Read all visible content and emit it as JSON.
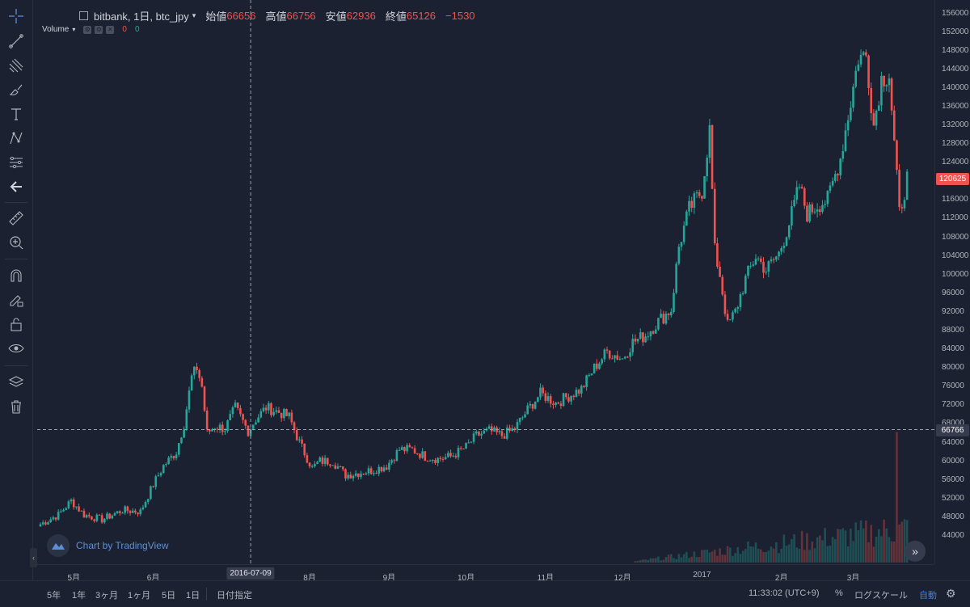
{
  "legend": {
    "symbol": "bitbank, 1日, btc_jpy",
    "open_label": "始値",
    "open_value": "66656",
    "high_label": "高値",
    "high_value": "66756",
    "low_label": "安値",
    "low_value": "62936",
    "close_label": "終値",
    "close_value": "65126",
    "change": "−1530"
  },
  "volume_indicator": {
    "label": "Volume",
    "value_a": "0",
    "value_b": "0"
  },
  "price_axis": {
    "ticks": [
      "156000",
      "152000",
      "148000",
      "144000",
      "140000",
      "136000",
      "132000",
      "128000",
      "124000",
      "120000",
      "116000",
      "112000",
      "108000",
      "104000",
      "100000",
      "96000",
      "92000",
      "88000",
      "84000",
      "80000",
      "76000",
      "72000",
      "68000",
      "64000",
      "60000",
      "56000",
      "52000",
      "48000",
      "44000"
    ],
    "current_price": "120625",
    "crosshair_price": "66766"
  },
  "time_axis": {
    "labels": [
      "5月",
      "6月",
      "7",
      "8月",
      "9月",
      "10月",
      "11月",
      "12月",
      "2017",
      "2月",
      "3月"
    ],
    "crosshair_date": "2016-07-09"
  },
  "watermark": {
    "text": "Chart by TradingView"
  },
  "bottom_bar": {
    "ranges": [
      "5年",
      "1年",
      "3ヶ月",
      "1ヶ月",
      "5日",
      "1日"
    ],
    "goto_date": "日付指定",
    "clock": "11:33:02 (UTC+9)",
    "percent": "%",
    "log_scale": "ログスケール",
    "auto": "自動"
  },
  "toolbar": {
    "tools": [
      "crosshair-icon",
      "trend-line-icon",
      "pitchfork-icon",
      "brush-icon",
      "text-icon",
      "pattern-icon",
      "prediction-icon",
      "back-arrow-icon",
      "ruler-icon",
      "zoom-in-icon",
      "magnet-icon",
      "lock-drawing-icon",
      "unlock-icon",
      "eye-icon",
      "layers-icon",
      "trash-icon"
    ]
  },
  "colors": {
    "up": "#26a69a",
    "down": "#ef5350",
    "background": "#1b2130",
    "accent": "#3d82e6"
  },
  "chart_data": {
    "type": "candlestick",
    "symbol": "btc_jpy",
    "interval": "1日",
    "y_range": [
      42000,
      156000
    ],
    "x_range": [
      "2016-04-18",
      "2017-03-27"
    ],
    "anchors": [
      [
        "2016-04-18",
        46500
      ],
      [
        "2016-04-25",
        48500
      ],
      [
        "2016-04-30",
        51500
      ],
      [
        "2016-05-05",
        48500
      ],
      [
        "2016-05-12",
        47500
      ],
      [
        "2016-05-20",
        49500
      ],
      [
        "2016-05-27",
        49200
      ],
      [
        "2016-06-01",
        55000
      ],
      [
        "2016-06-05",
        59000
      ],
      [
        "2016-06-10",
        62000
      ],
      [
        "2016-06-13",
        68000
      ],
      [
        "2016-06-16",
        78000
      ],
      [
        "2016-06-18",
        80000
      ],
      [
        "2016-06-20",
        76000
      ],
      [
        "2016-06-22",
        66000
      ],
      [
        "2016-06-25",
        67500
      ],
      [
        "2016-06-29",
        67000
      ],
      [
        "2016-07-03",
        71500
      ],
      [
        "2016-07-08",
        66500
      ],
      [
        "2016-07-11",
        69000
      ],
      [
        "2016-07-15",
        71500
      ],
      [
        "2016-07-20",
        70500
      ],
      [
        "2016-07-24",
        69500
      ],
      [
        "2016-07-28",
        64000
      ],
      [
        "2016-08-02",
        58500
      ],
      [
        "2016-08-05",
        60000
      ],
      [
        "2016-08-10",
        60000
      ],
      [
        "2016-08-15",
        57000
      ],
      [
        "2016-08-20",
        57500
      ],
      [
        "2016-08-25",
        58000
      ],
      [
        "2016-08-31",
        59000
      ],
      [
        "2016-09-05",
        62500
      ],
      [
        "2016-09-10",
        62500
      ],
      [
        "2016-09-15",
        61000
      ],
      [
        "2016-09-20",
        60500
      ],
      [
        "2016-09-25",
        61000
      ],
      [
        "2016-10-01",
        63000
      ],
      [
        "2016-10-05",
        65500
      ],
      [
        "2016-10-10",
        66500
      ],
      [
        "2016-10-15",
        65500
      ],
      [
        "2016-10-20",
        67000
      ],
      [
        "2016-10-25",
        71000
      ],
      [
        "2016-10-30",
        74500
      ],
      [
        "2016-11-05",
        72500
      ],
      [
        "2016-11-10",
        74000
      ],
      [
        "2016-11-15",
        75500
      ],
      [
        "2016-11-20",
        80000
      ],
      [
        "2016-11-25",
        83500
      ],
      [
        "2016-12-01",
        82000
      ],
      [
        "2016-12-05",
        85500
      ],
      [
        "2016-12-10",
        87000
      ],
      [
        "2016-12-15",
        90000
      ],
      [
        "2016-12-20",
        92500
      ],
      [
        "2016-12-23",
        106000
      ],
      [
        "2016-12-27",
        114000
      ],
      [
        "2017-01-01",
        118000
      ],
      [
        "2017-01-04",
        131000
      ],
      [
        "2017-01-06",
        105000
      ],
      [
        "2017-01-08",
        100000
      ],
      [
        "2017-01-11",
        89000
      ],
      [
        "2017-01-14",
        92000
      ],
      [
        "2017-01-18",
        99000
      ],
      [
        "2017-01-22",
        104000
      ],
      [
        "2017-01-26",
        101000
      ],
      [
        "2017-01-31",
        104500
      ],
      [
        "2017-02-04",
        111000
      ],
      [
        "2017-02-08",
        119000
      ],
      [
        "2017-02-11",
        113000
      ],
      [
        "2017-02-15",
        115000
      ],
      [
        "2017-02-19",
        116000
      ],
      [
        "2017-02-24",
        125000
      ],
      [
        "2017-02-28",
        137000
      ],
      [
        "2017-03-03",
        146500
      ],
      [
        "2017-03-06",
        147000
      ],
      [
        "2017-03-09",
        132000
      ],
      [
        "2017-03-12",
        142000
      ],
      [
        "2017-03-15",
        143000
      ],
      [
        "2017-03-17",
        128000
      ],
      [
        "2017-03-19",
        113000
      ],
      [
        "2017-03-22",
        120625
      ]
    ],
    "volume": {
      "max_day": "2017-03-18"
    }
  }
}
